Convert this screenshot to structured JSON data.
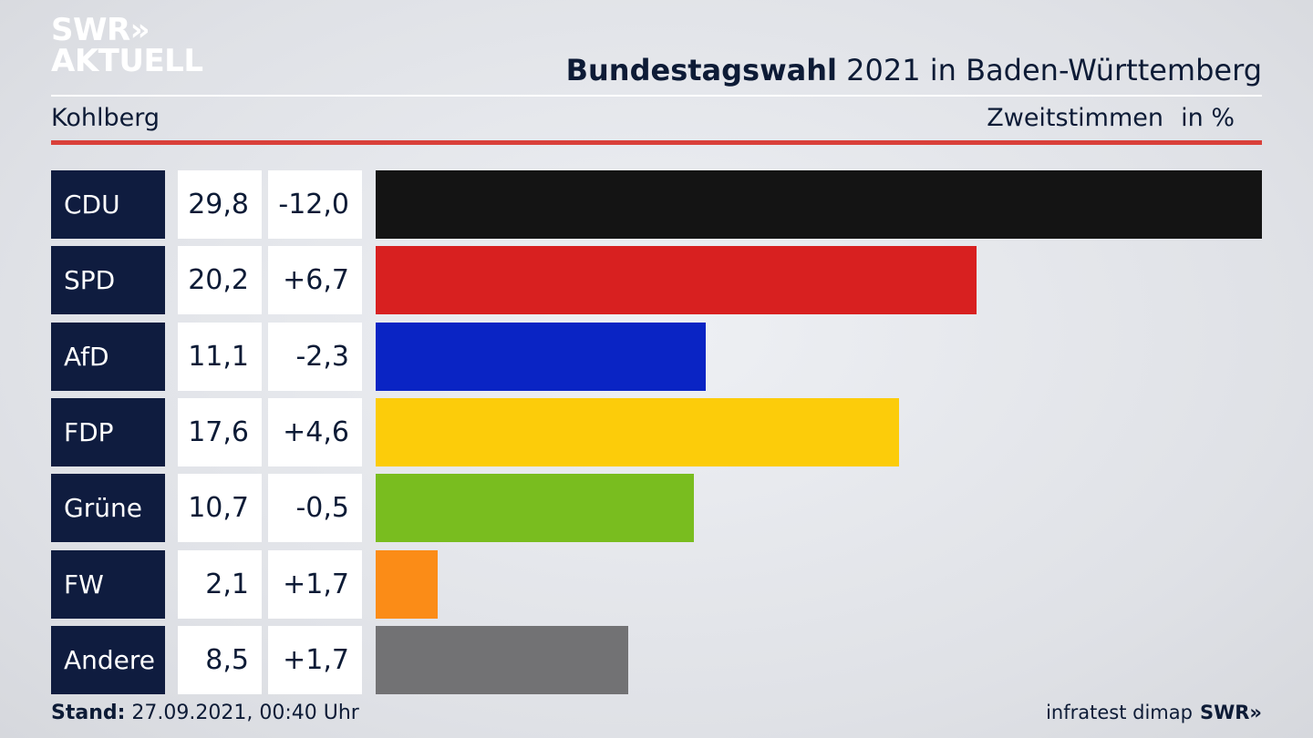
{
  "logo": {
    "line1": "SWR»",
    "line2": "AKTUELL"
  },
  "header": {
    "title_bold": "Bundestagswahl",
    "title_rest": " 2021 in Baden-Württemberg",
    "region": "Kohlberg",
    "metric": "Zweitstimmen",
    "unit": "in %"
  },
  "footer": {
    "stand_label": "Stand:",
    "stand_value": " 27.09.2021, 00:40 Uhr",
    "source": "infratest dimap",
    "brand": "SWR»"
  },
  "chart_data": {
    "type": "bar",
    "orientation": "horizontal",
    "categories": [
      "CDU",
      "SPD",
      "AfD",
      "FDP",
      "Grüne",
      "FW",
      "Andere"
    ],
    "values": [
      29.8,
      20.2,
      11.1,
      17.6,
      10.7,
      2.1,
      8.5
    ],
    "value_labels": [
      "29,8",
      "20,2",
      "11,1",
      "17,6",
      "10,7",
      "2,1",
      "8,5"
    ],
    "diff_labels": [
      "-12,0",
      "+6,7",
      "-2,3",
      "+4,6",
      "-0,5",
      "+1,7",
      "+1,7"
    ],
    "diffs": [
      -12.0,
      6.7,
      -2.3,
      4.6,
      -0.5,
      1.7,
      1.7
    ],
    "colors": [
      "#141414",
      "#d82020",
      "#0a24c4",
      "#fccc0a",
      "#79bd1f",
      "#fb8c17",
      "#727274"
    ],
    "xlim": [
      0,
      29.8
    ],
    "unit": "in %"
  }
}
